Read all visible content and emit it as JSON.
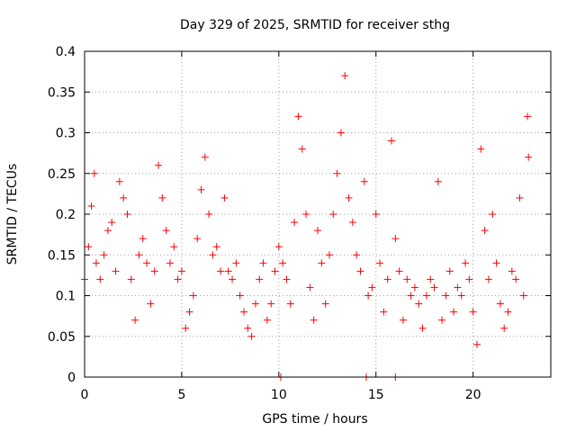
{
  "chart_data": {
    "type": "scatter",
    "title": "Day 329 of 2025, SRMTID for receiver sthg",
    "xlabel": "GPS time / hours",
    "ylabel": "SRMTID / TECUs",
    "xlim": [
      0,
      24
    ],
    "ylim": [
      0,
      0.4
    ],
    "xticks": [
      0,
      5,
      10,
      15,
      20
    ],
    "xtick_labels": [
      "0",
      "5",
      "10",
      "15",
      "20"
    ],
    "yticks": [
      0,
      0.05,
      0.1,
      0.15,
      0.2,
      0.25,
      0.3,
      0.35,
      0.4
    ],
    "ytick_labels": [
      "0",
      "0.05",
      "0.1",
      "0.15",
      "0.2",
      "0.25",
      "0.3",
      "0.35",
      "0.4"
    ],
    "grid": true,
    "marker": "+",
    "marker_color": "#ff0000",
    "series": [
      {
        "name": "sthg",
        "x": [
          0.0,
          0.2,
          0.35,
          0.5,
          0.6,
          0.8,
          1.0,
          1.2,
          1.4,
          1.6,
          1.8,
          2.0,
          2.2,
          2.4,
          2.6,
          2.8,
          3.0,
          3.2,
          3.4,
          3.6,
          3.8,
          4.0,
          4.2,
          4.4,
          4.6,
          4.8,
          5.0,
          5.2,
          5.4,
          5.6,
          5.8,
          6.0,
          6.2,
          6.4,
          6.6,
          6.8,
          7.0,
          7.2,
          7.4,
          7.6,
          7.8,
          8.0,
          8.2,
          8.4,
          8.6,
          8.8,
          9.0,
          9.2,
          9.4,
          9.6,
          9.8,
          10.0,
          10.2,
          10.4,
          10.6,
          10.8,
          11.0,
          11.2,
          11.4,
          11.6,
          11.8,
          12.0,
          12.2,
          12.4,
          12.6,
          12.8,
          13.0,
          13.2,
          13.4,
          13.6,
          13.8,
          14.0,
          14.2,
          14.4,
          14.6,
          14.8,
          15.0,
          15.2,
          15.4,
          15.6,
          15.8,
          16.0,
          16.2,
          16.4,
          16.6,
          16.8,
          17.0,
          17.2,
          17.4,
          17.6,
          17.8,
          18.0,
          18.2,
          18.4,
          18.6,
          18.8,
          19.0,
          19.2,
          19.4,
          19.6,
          19.8,
          20.0,
          20.2,
          20.4,
          20.6,
          20.8,
          21.0,
          21.2,
          21.4,
          21.6,
          21.8,
          22.0,
          22.2,
          22.4,
          22.6,
          22.8,
          22.85,
          10.1,
          14.5,
          16.0
        ],
        "y": [
          0.12,
          0.16,
          0.21,
          0.25,
          0.14,
          0.12,
          0.15,
          0.18,
          0.19,
          0.13,
          0.24,
          0.22,
          0.2,
          0.12,
          0.07,
          0.15,
          0.17,
          0.14,
          0.09,
          0.13,
          0.26,
          0.22,
          0.18,
          0.14,
          0.16,
          0.12,
          0.13,
          0.06,
          0.08,
          0.1,
          0.17,
          0.23,
          0.27,
          0.2,
          0.15,
          0.16,
          0.13,
          0.22,
          0.13,
          0.12,
          0.14,
          0.1,
          0.08,
          0.06,
          0.05,
          0.09,
          0.12,
          0.14,
          0.07,
          0.09,
          0.13,
          0.16,
          0.14,
          0.12,
          0.09,
          0.19,
          0.32,
          0.28,
          0.2,
          0.11,
          0.07,
          0.18,
          0.14,
          0.09,
          0.15,
          0.2,
          0.25,
          0.3,
          0.37,
          0.22,
          0.19,
          0.15,
          0.13,
          0.24,
          0.1,
          0.11,
          0.2,
          0.14,
          0.08,
          0.12,
          0.29,
          0.17,
          0.13,
          0.07,
          0.12,
          0.1,
          0.11,
          0.09,
          0.06,
          0.1,
          0.12,
          0.11,
          0.24,
          0.07,
          0.1,
          0.13,
          0.08,
          0.11,
          0.1,
          0.14,
          0.12,
          0.08,
          0.04,
          0.28,
          0.18,
          0.12,
          0.2,
          0.14,
          0.09,
          0.06,
          0.08,
          0.13,
          0.12,
          0.22,
          0.1,
          0.32,
          0.27,
          0.0,
          0.0,
          0.0
        ]
      }
    ]
  }
}
